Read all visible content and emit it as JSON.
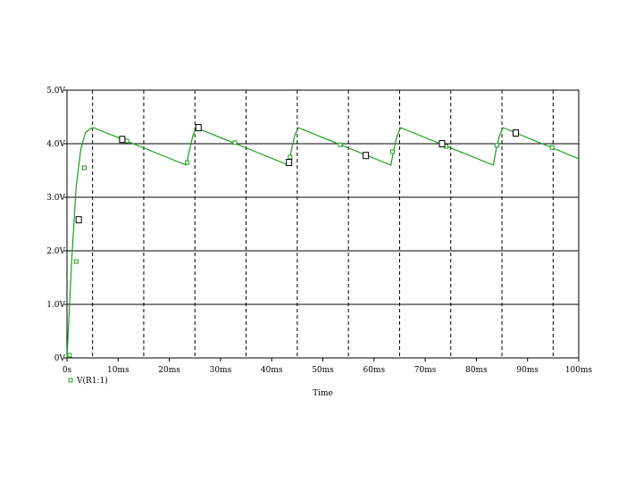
{
  "chart_data": {
    "type": "line",
    "title": "",
    "xlabel": "Time",
    "ylabel": "",
    "xlim": [
      0,
      100
    ],
    "ylim": [
      0,
      5.0
    ],
    "x_unit": "ms",
    "y_unit": "V",
    "x_ticks": [
      0,
      10,
      20,
      30,
      40,
      50,
      60,
      70,
      80,
      90,
      100
    ],
    "x_tick_labels": [
      "0s",
      "10ms",
      "20ms",
      "30ms",
      "40ms",
      "50ms",
      "60ms",
      "70ms",
      "80ms",
      "90ms",
      "100ms"
    ],
    "y_ticks": [
      0,
      1,
      2,
      3,
      4,
      5
    ],
    "y_tick_labels": [
      "0V",
      "1.0V",
      "2.0V",
      "3.0V",
      "4.0V",
      "5.0V"
    ],
    "solid_grid_y": [
      1,
      2,
      3,
      4
    ],
    "dashed_grid_x": [
      5,
      15,
      25,
      35,
      45,
      55,
      65,
      75,
      85,
      95
    ],
    "legend_position": "bottom-left",
    "series": [
      {
        "name": "V(R1:1)",
        "color": "#1a9e1a",
        "x": [
          0,
          0.9,
          1.8,
          2.7,
          3.6,
          4.5,
          5.2,
          23.3,
          24.0,
          24.6,
          25.2,
          43.3,
          43.9,
          44.5,
          45.2,
          63.3,
          63.9,
          64.5,
          65.2,
          83.3,
          83.9,
          84.5,
          85.2,
          100
        ],
        "y": [
          0.0,
          1.8,
          3.2,
          3.9,
          4.2,
          4.28,
          4.3,
          3.6,
          3.9,
          4.15,
          4.3,
          3.6,
          3.9,
          4.15,
          4.3,
          3.6,
          3.9,
          4.15,
          4.3,
          3.6,
          3.9,
          4.15,
          4.3,
          3.72
        ]
      }
    ],
    "square_markers": [
      {
        "x": 0.5,
        "y": 0.05
      },
      {
        "x": 1.8,
        "y": 1.8
      },
      {
        "x": 3.4,
        "y": 3.55
      },
      {
        "x": 11.7,
        "y": 4.05
      },
      {
        "x": 23.5,
        "y": 3.65
      },
      {
        "x": 32.8,
        "y": 4.02
      },
      {
        "x": 43.6,
        "y": 3.75
      },
      {
        "x": 53.4,
        "y": 3.98
      },
      {
        "x": 63.6,
        "y": 3.85
      },
      {
        "x": 74.1,
        "y": 3.95
      },
      {
        "x": 84.0,
        "y": 3.97
      },
      {
        "x": 94.8,
        "y": 3.93
      }
    ],
    "cursor_markers": [
      {
        "x": 2.3,
        "y": 2.58
      },
      {
        "x": 10.8,
        "y": 4.08
      },
      {
        "x": 25.7,
        "y": 4.3
      },
      {
        "x": 43.4,
        "y": 3.65
      },
      {
        "x": 58.4,
        "y": 3.78
      },
      {
        "x": 73.3,
        "y": 4.0
      },
      {
        "x": 87.7,
        "y": 4.2
      }
    ]
  }
}
